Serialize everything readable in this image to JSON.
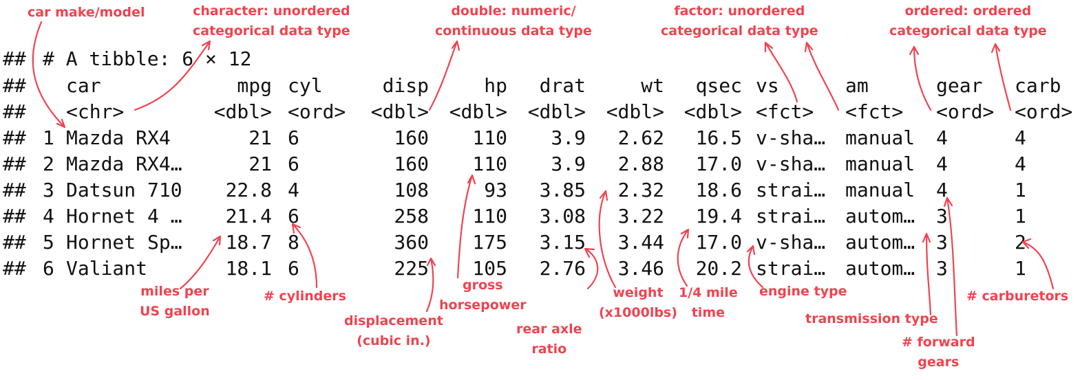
{
  "colors": {
    "annotation": "#f0434f",
    "code_text": "#111111",
    "background": "#ffffff"
  },
  "console": {
    "prompt": "##",
    "tibble_header": "# A tibble: 6 × 12",
    "columns": [
      "car",
      "mpg",
      "cyl",
      "disp",
      "hp",
      "drat",
      "wt",
      "qsec",
      "vs",
      "am",
      "gear",
      "carb"
    ],
    "types": [
      "<chr>",
      "<dbl>",
      "<ord>",
      "<dbl>",
      "<dbl>",
      "<dbl>",
      "<dbl>",
      "<dbl>",
      "<fct>",
      "<fct>",
      "<ord>",
      "<ord>"
    ],
    "rows": [
      {
        "n": "1",
        "cells": [
          "Mazda RX4",
          "21",
          "6",
          "160",
          "110",
          "3.9",
          "2.62",
          "16.5",
          "v-sha…",
          "manual",
          "4",
          "4"
        ]
      },
      {
        "n": "2",
        "cells": [
          "Mazda RX4…",
          "21",
          "6",
          "160",
          "110",
          "3.9",
          "2.88",
          "17.0",
          "v-sha…",
          "manual",
          "4",
          "4"
        ]
      },
      {
        "n": "3",
        "cells": [
          "Datsun 710",
          "22.8",
          "4",
          "108",
          "93",
          "3.85",
          "2.32",
          "18.6",
          "strai…",
          "manual",
          "4",
          "1"
        ]
      },
      {
        "n": "4",
        "cells": [
          "Hornet 4 …",
          "21.4",
          "6",
          "258",
          "110",
          "3.08",
          "3.22",
          "19.4",
          "strai…",
          "autom…",
          "3",
          "1"
        ]
      },
      {
        "n": "5",
        "cells": [
          "Hornet Sp…",
          "18.7",
          "8",
          "360",
          "175",
          "3.15",
          "3.44",
          "17.0",
          "v-sha…",
          "autom…",
          "3",
          "2"
        ]
      },
      {
        "n": "6",
        "cells": [
          "Valiant",
          "18.1",
          "6",
          "225",
          "105",
          "2.76",
          "3.46",
          "20.2",
          "strai…",
          "autom…",
          "3",
          "1"
        ]
      }
    ]
  },
  "annotations": {
    "car": "car make/model",
    "character": "character: unordered\ncategorical data type",
    "double": "double: numeric/\ncontinuous data type",
    "factor": "factor: unordered\ncategorical data type",
    "ordered": "ordered: ordered\ncategorical data type",
    "mpg": "miles per\nUS gallon",
    "cyl": "# cylinders",
    "disp": "displacement\n(cubic in.)",
    "hp": "gross\nhorsepower",
    "drat": "rear axle\nratio",
    "wt": "weight\n(x1000lbs)",
    "qsec": "1/4 mile\ntime",
    "vs": "engine type",
    "am": "transmission type",
    "gear": "# forward\ngears",
    "carb": "# carburetors"
  }
}
